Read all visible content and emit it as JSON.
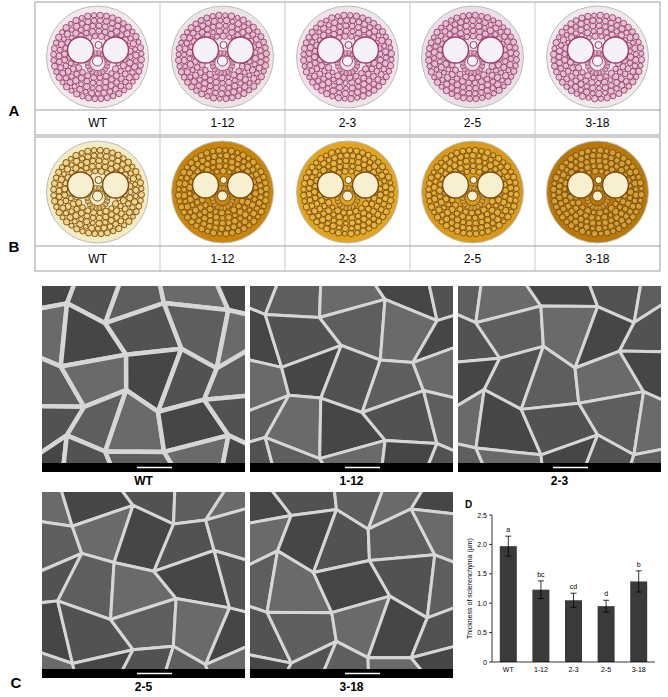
{
  "panels": {
    "A": {
      "label": "A",
      "samples": [
        "WT",
        "1-12",
        "2-3",
        "2-5",
        "3-18"
      ]
    },
    "B": {
      "label": "B",
      "samples": [
        "WT",
        "1-12",
        "2-3",
        "2-5",
        "3-18"
      ]
    },
    "C": {
      "label": "C",
      "samples": [
        "WT",
        "1-12",
        "2-3",
        "2-5",
        "3-18"
      ]
    },
    "D": {
      "label": "D"
    }
  },
  "chart_data": {
    "type": "bar",
    "y_label": "Thickness of sclerenchyma (μm)",
    "categories": [
      "WT",
      "1-12",
      "2-3",
      "2-5",
      "3-18"
    ],
    "values": [
      1.97,
      1.23,
      1.05,
      0.95,
      1.37
    ],
    "errors": [
      0.17,
      0.15,
      0.12,
      0.1,
      0.18
    ],
    "significance": [
      "a",
      "bc",
      "cd",
      "d",
      "b"
    ],
    "color": "#3a3a3a",
    "ylim": [
      0,
      2.5
    ],
    "yticks": [
      0,
      0.5,
      {
        "value": 1,
        "label": "1.0"
      },
      1.5,
      {
        "value": 2,
        "label": "2.0"
      },
      2.5
    ]
  }
}
